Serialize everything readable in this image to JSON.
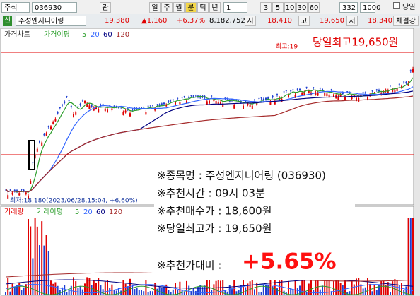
{
  "toolbar": {
    "market": "주식",
    "code": "036930",
    "search_button": "관",
    "periods": [
      "일",
      "주",
      "월",
      "분",
      "틱",
      "년"
    ],
    "interval": "1",
    "quick_intervals": [
      "3",
      "5",
      "10",
      "30",
      "60"
    ],
    "count": "332",
    "total": "1000",
    "today_checkbox": "당일"
  },
  "quote": {
    "badge": "신",
    "name": "주성엔지니어링",
    "price": "19,380",
    "change": "▲1,160",
    "change_rate": "+6.37%",
    "volume": "8,182,752",
    "open_label": "시",
    "open": "18,410",
    "high_label": "고",
    "high": "19,650",
    "low_label": "저",
    "low": "18,340",
    "tab": "체결강"
  },
  "price_panel": {
    "title": "가격차트",
    "ma_label": "가격이평",
    "ma_periods": [
      "5",
      "20",
      "60",
      "120"
    ],
    "high_marker": "최고:19",
    "high_note": "당일최고19,650원",
    "low_marker": "최저:18,180(2023/06/28,15:04, +6.60%)"
  },
  "volume_panel": {
    "title": "거래량",
    "ma_label": "거래이평",
    "ma_periods": [
      "5",
      "20",
      "60",
      "120"
    ]
  },
  "overlay": {
    "lines": [
      "※종목명 : 주성엔지니어링 (036930)",
      "※추천시간 : 09시 03분",
      "※추천매수가 : 18,600원",
      "※당일최고가 : 19,650원"
    ],
    "compare_label": "※추천가대비 :",
    "compare_value": "+5.65%"
  }
}
